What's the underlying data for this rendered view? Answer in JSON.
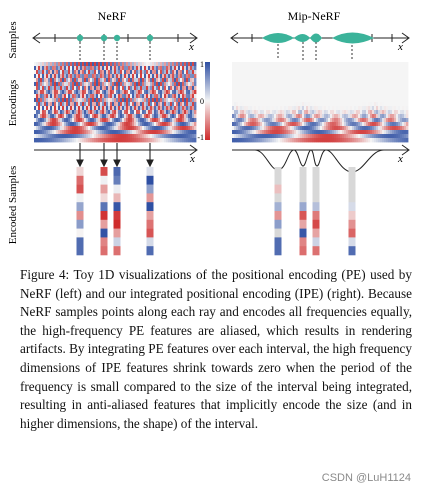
{
  "figure": {
    "panel_titles": {
      "left": "NeRF",
      "right": "Mip-NeRF"
    },
    "row_labels": {
      "samples": "Samples",
      "encodings": "Encodings",
      "encoded": "Encoded Samples"
    },
    "axis_var": "x",
    "colorbar_ticks": [
      "1",
      "0",
      "-1"
    ],
    "colors": {
      "positive": "#2e4fa3",
      "negative": "#cf2a2a",
      "neutral": "#f3f3f3",
      "sample": "#3bb39a",
      "gray": "#d8d8d8"
    }
  },
  "caption": {
    "text": "Figure 4: Toy 1D visualizations of the positional encoding (PE) used by NeRF (left) and our integrated positional encoding (IPE) (right). Because NeRF samples points along each ray and encodes all frequencies equally, the high-frequency PE features are aliased, which results in rendering artifacts. By integrating PE features over each interval, the high frequency dimensions of IPE features shrink towards zero when the period of the frequency is small compared to the size of the interval being integrated, resulting in anti-aliased features that implicitly encode the size (and in higher dimensions, the shape) of the interval."
  },
  "watermark": "CSDN @LuH1124"
}
